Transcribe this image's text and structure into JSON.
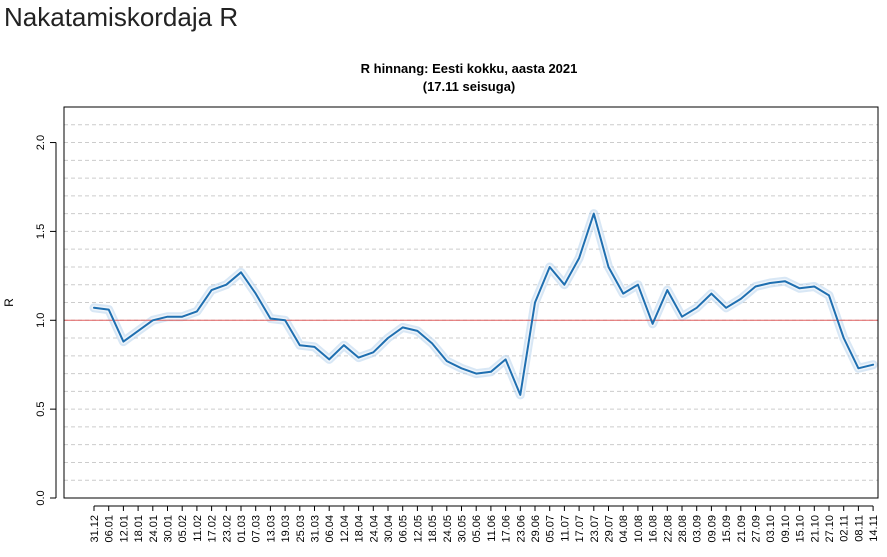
{
  "page": {
    "title": "Nakatamiskordaja R"
  },
  "chart_data": {
    "type": "line",
    "title": "R hinnang: Eesti kokku, aasta 2021",
    "subtitle": "(17.11 seisuga)",
    "xlabel": "",
    "ylabel": "R",
    "ylim": [
      0,
      2.2
    ],
    "yticks": [
      0.0,
      0.5,
      1.0,
      1.5,
      2.0
    ],
    "ytick_labels": [
      "0.0",
      "0.5",
      "1.0",
      "1.5",
      "2.0"
    ],
    "grid": "horizontal dashed every 0.1",
    "reference_line": {
      "y": 1.0,
      "color": "#e06060"
    },
    "colors": {
      "line": "#1f6fb0",
      "band": "#b8d4ec",
      "reference": "#e06060",
      "grid": "#cccccc"
    },
    "x_tick_labels": [
      "31.12",
      "06.01",
      "12.01",
      "18.01",
      "24.01",
      "30.01",
      "05.02",
      "11.02",
      "17.02",
      "23.02",
      "01.03",
      "07.03",
      "13.03",
      "19.03",
      "25.03",
      "31.03",
      "06.04",
      "12.04",
      "18.04",
      "24.04",
      "30.04",
      "06.05",
      "12.05",
      "18.05",
      "24.05",
      "30.05",
      "05.06",
      "11.06",
      "17.06",
      "23.06",
      "29.06",
      "05.07",
      "11.07",
      "17.07",
      "23.07",
      "29.07",
      "04.08",
      "10.08",
      "16.08",
      "22.08",
      "28.08",
      "03.09",
      "09.09",
      "15.09",
      "21.09",
      "27.09",
      "03.10",
      "09.10",
      "15.10",
      "21.10",
      "27.10",
      "02.11",
      "08.11",
      "14.11"
    ],
    "series": [
      {
        "role": "estimate",
        "x": [
          0,
          1,
          2,
          3,
          4,
          5,
          6,
          7,
          8,
          9,
          10,
          11,
          12,
          13,
          14,
          15,
          16,
          17,
          18,
          19,
          20,
          21,
          22,
          23,
          24,
          25,
          26,
          27,
          28,
          29,
          30,
          31,
          32,
          33,
          34,
          35,
          36,
          37,
          38,
          39,
          40,
          41,
          42,
          43,
          44,
          45,
          46,
          47,
          48,
          49,
          50,
          51,
          52,
          53
        ],
        "values": [
          1.07,
          1.06,
          0.88,
          0.94,
          1.0,
          1.02,
          1.02,
          1.05,
          1.17,
          1.2,
          1.27,
          1.15,
          1.01,
          1.0,
          0.86,
          0.85,
          0.78,
          0.86,
          0.79,
          0.82,
          0.9,
          0.96,
          0.94,
          0.87,
          0.77,
          0.73,
          0.7,
          0.71,
          0.78,
          0.58,
          1.1,
          1.3,
          1.2,
          1.35,
          1.6,
          1.3,
          1.15,
          1.2,
          0.98,
          1.17,
          1.02,
          1.07,
          1.15,
          1.07,
          1.12,
          1.19,
          1.21,
          1.22,
          1.18,
          1.19,
          1.14,
          0.9,
          0.73,
          0.75
        ]
      }
    ]
  }
}
